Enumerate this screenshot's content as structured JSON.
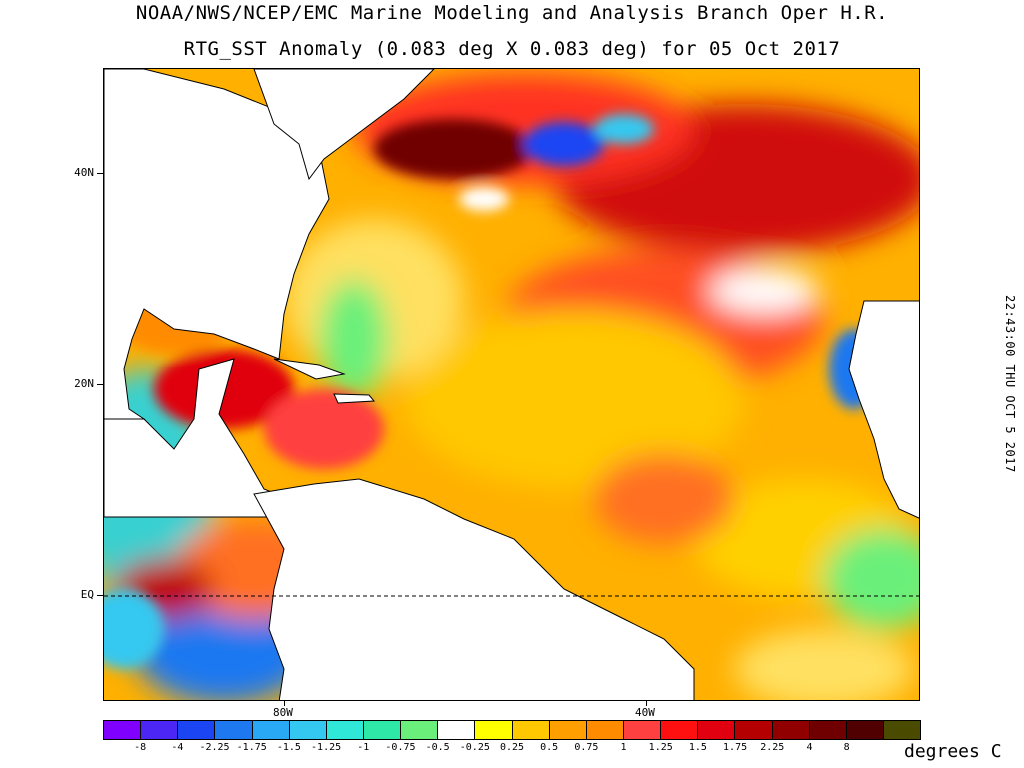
{
  "header": {
    "title_line1": "NOAA/NWS/NCEP/EMC Marine Modeling and Analysis Branch Oper H.R.",
    "title_line2": "RTG_SST Anomaly (0.083 deg X 0.083 deg) for 05 Oct 2017"
  },
  "timestamp": "22:43:00  THU OCT 5 2017",
  "axes": {
    "lat_labels": [
      "40N",
      "20N",
      "EQ"
    ],
    "lon_labels": [
      "80W",
      "40W"
    ]
  },
  "colorbar": {
    "units": "degrees C",
    "colors": [
      "#7f00ff",
      "#4b26f5",
      "#1b44f3",
      "#1e78f0",
      "#28a8f5",
      "#34c8f0",
      "#30e8d8",
      "#2ee8a8",
      "#6af07a",
      "#ffffff",
      "#ffff00",
      "#ffc800",
      "#ffa000",
      "#ff8c00",
      "#ff4040",
      "#ff1010",
      "#e00010",
      "#b40000",
      "#900000",
      "#700000",
      "#500000",
      "#4a4a00"
    ],
    "tick_labels": [
      "-8",
      "-4",
      "-2.25",
      "-1.75",
      "-1.5",
      "-1.25",
      "-1",
      "-0.75",
      "-0.5",
      "-0.25",
      "0.25",
      "0.5",
      "0.75",
      "1",
      "1.25",
      "1.5",
      "1.75",
      "2.25",
      "4",
      "8"
    ]
  },
  "legend_map": {
    "land": "#ffffff",
    "ocean_base": "#ffa000"
  }
}
